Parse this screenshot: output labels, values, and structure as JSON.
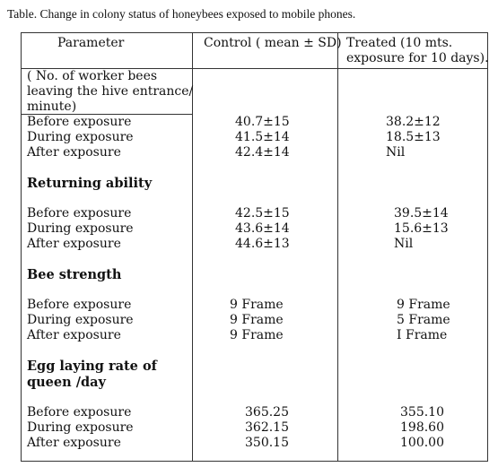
{
  "caption": "Table. Change in colony status of honeybees exposed to mobile phones.",
  "headers": {
    "parameter": "Parameter",
    "control": "Control ( mean ± SD)",
    "treated_line1": "Treated (10 mts.",
    "treated_line2": "exposure for 10 days)."
  },
  "sections": [
    {
      "title_lines": [
        "( No. of worker bees",
        "leaving the hive entrance/",
        "minute)"
      ],
      "rows": [
        {
          "label": "Before exposure",
          "control": "40.7±15",
          "treated": "38.2±12"
        },
        {
          "label": "During exposure",
          "control": "41.5±14",
          "treated": "18.5±13"
        },
        {
          "label": "After exposure",
          "control": "42.4±14",
          "treated": "Nil"
        }
      ]
    },
    {
      "title_lines": [
        "Returning ability"
      ],
      "rows": [
        {
          "label": "Before exposure",
          "control": "42.5±15",
          "treated": "39.5±14"
        },
        {
          "label": "During exposure",
          "control": "43.6±14",
          "treated": "15.6±13"
        },
        {
          "label": "After exposure",
          "control": "44.6±13",
          "treated": "Nil"
        }
      ]
    },
    {
      "title_lines": [
        "Bee strength"
      ],
      "rows": [
        {
          "label": "Before exposure",
          "control": "9 Frame",
          "treated": "9 Frame"
        },
        {
          "label": "During exposure",
          "control": "9 Frame",
          "treated": "5 Frame"
        },
        {
          "label": "After exposure",
          "control": "9 Frame",
          "treated": "I Frame"
        }
      ]
    },
    {
      "title_lines": [
        "Egg laying rate of",
        "queen /day"
      ],
      "rows": [
        {
          "label": "Before exposure",
          "control": "365.25",
          "treated": "355.10"
        },
        {
          "label": "During exposure",
          "control": "362.15",
          "treated": "198.60"
        },
        {
          "label": "After exposure",
          "control": "350.15",
          "treated": "100.00"
        }
      ]
    }
  ]
}
